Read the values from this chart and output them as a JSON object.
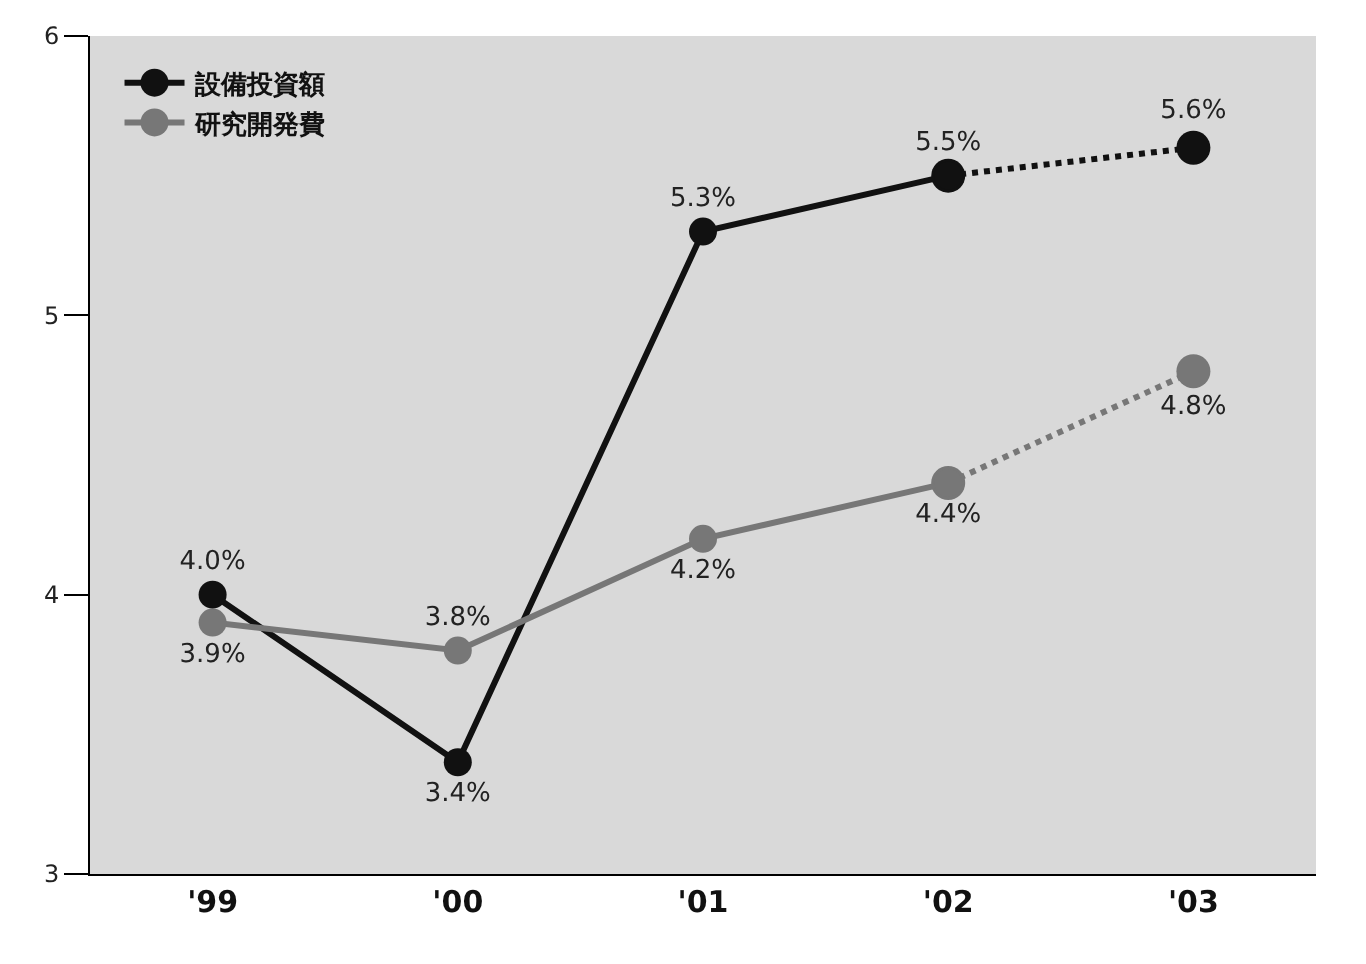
{
  "chart_data": {
    "type": "line",
    "categories": [
      "'99",
      "'00",
      "'01",
      "'02",
      "'03"
    ],
    "series": [
      {
        "name": "設備投資額",
        "color": "#111111",
        "line_style": "solid",
        "values": [
          4.0,
          3.4,
          5.3,
          5.5,
          null
        ],
        "value_labels": [
          "4.0%",
          "3.4%",
          "5.3%",
          "5.5%",
          null
        ]
      },
      {
        "name": "研究開発費",
        "color": "#777777",
        "line_style": "solid",
        "values": [
          3.9,
          3.8,
          4.2,
          4.4,
          null
        ],
        "value_labels": [
          "3.9%",
          "3.8%",
          "4.2%",
          "4.4%",
          null
        ]
      },
      {
        "color": "#111111",
        "line_style": "dotted",
        "values": [
          null,
          null,
          null,
          5.5,
          5.6
        ],
        "value_labels": [
          null,
          null,
          null,
          null,
          "5.6%"
        ]
      },
      {
        "color": "#777777",
        "line_style": "dotted",
        "values": [
          null,
          null,
          null,
          4.4,
          4.8
        ],
        "value_labels": [
          null,
          null,
          null,
          null,
          "4.8%"
        ]
      }
    ],
    "ylim": [
      3,
      6
    ],
    "yticks": [
      3,
      4,
      5,
      6
    ],
    "grid": false,
    "legend": "top left",
    "marker": "circle"
  }
}
